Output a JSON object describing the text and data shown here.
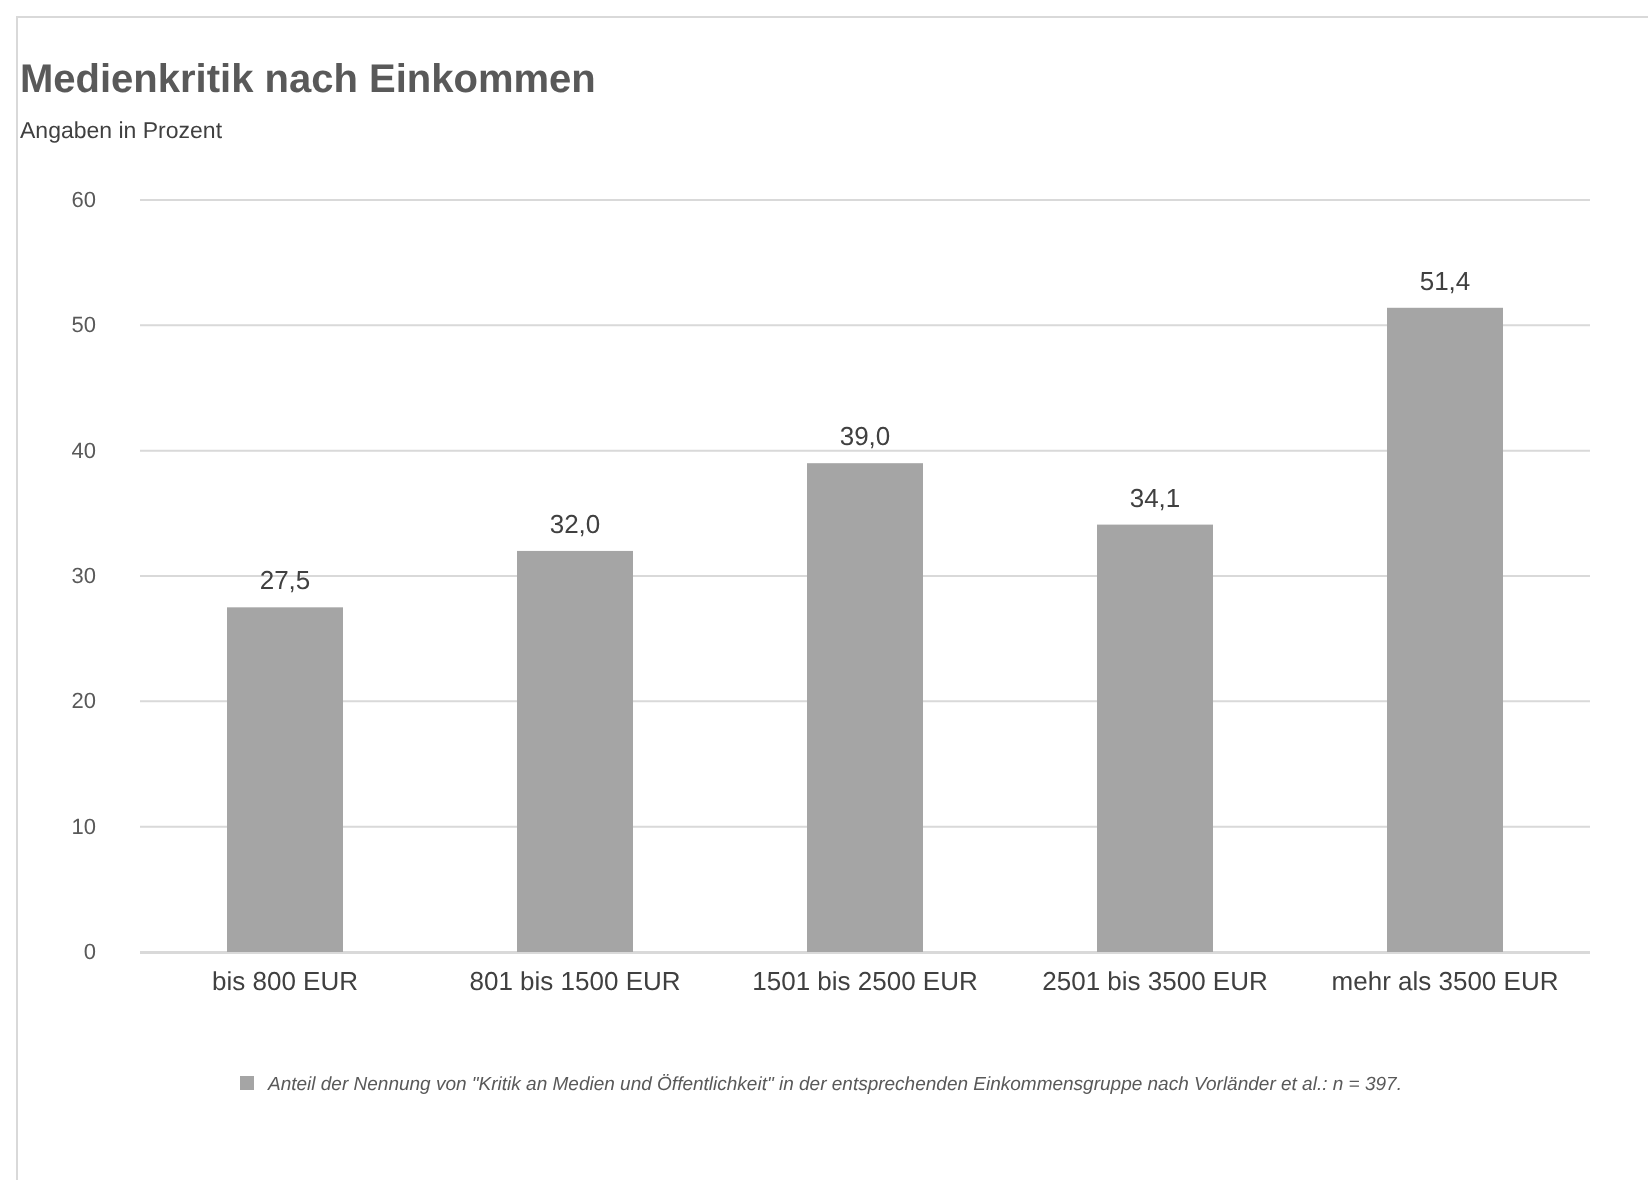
{
  "chart_data": {
    "type": "bar",
    "title": "Medienkritik nach Einkommen",
    "subtitle": "Angaben in Prozent",
    "categories": [
      "bis 800 EUR",
      "801 bis 1500 EUR",
      "1501 bis 2500 EUR",
      "2501 bis 3500 EUR",
      "mehr als 3500 EUR"
    ],
    "series": [
      {
        "name": "Anteil der Nennung von \"Kritik an Medien und Öffentlichkeit\" in der entsprechenden Einkommensgruppe nach Vorländer et al.: n = 397.",
        "color": "#a5a5a5",
        "values": [
          27.5,
          32.0,
          39.0,
          34.1,
          51.4
        ],
        "value_labels": [
          "27,5",
          "32,0",
          "39,0",
          "34,1",
          "51,4"
        ]
      }
    ],
    "ylim": [
      0,
      60
    ],
    "yticks": [
      0,
      10,
      20,
      30,
      40,
      50,
      60
    ],
    "grid": "y",
    "legend": "bottom"
  }
}
